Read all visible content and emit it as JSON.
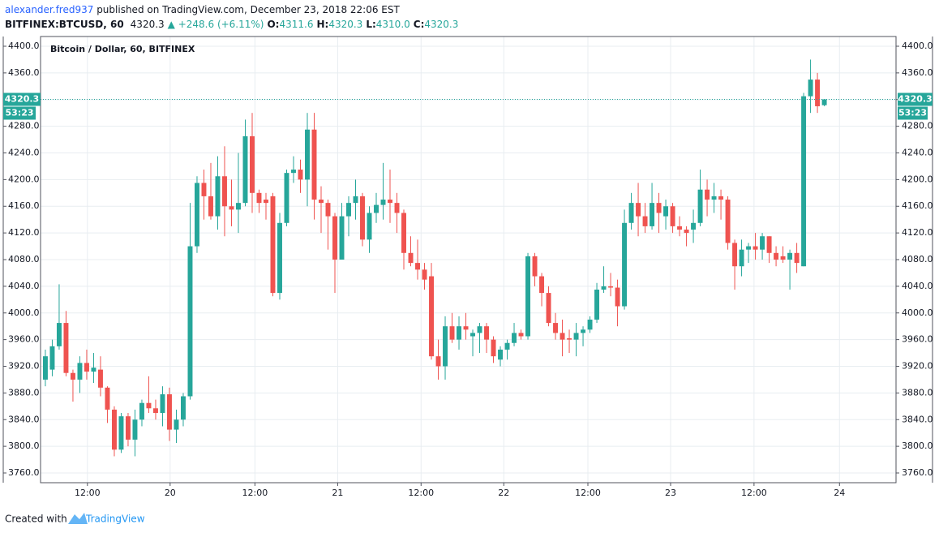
{
  "header": {
    "author": "alexander.fred937",
    "published": " published on TradingView.com, December 23, 2018 22:06 EST",
    "symbol": "BITFINEX:BTCUSD, 60",
    "last": "4320.3",
    "change": "▲ +248.6 (+6.11%)",
    "ohlc": [
      {
        "label": "O:",
        "value": "4311.6"
      },
      {
        "label": "H:",
        "value": "4320.3"
      },
      {
        "label": "L:",
        "value": "4310.0"
      },
      {
        "label": "C:",
        "value": "4320.3"
      }
    ]
  },
  "footer": {
    "created": "Created with",
    "brand": "TradingView"
  },
  "chart_data": {
    "type": "candlestick",
    "title": "Bitcoin / Dollar, 60, BITFINEX",
    "up_color": "#26a69a",
    "down_color": "#ef5350",
    "grid": true,
    "last_price": 4320.3,
    "countdown": "53:23",
    "ylim": [
      3745.4,
      4414.6
    ],
    "yticks": [
      {
        "value": 3760,
        "label": "3760.0"
      },
      {
        "value": 3800,
        "label": "3800.0"
      },
      {
        "value": 3840,
        "label": "3840.0"
      },
      {
        "value": 3880,
        "label": "3880.0"
      },
      {
        "value": 3920,
        "label": "3920.0"
      },
      {
        "value": 3960,
        "label": "3960.0"
      },
      {
        "value": 4000,
        "label": "4000.0"
      },
      {
        "value": 4040,
        "label": "4040.0"
      },
      {
        "value": 4080,
        "label": "4080.0"
      },
      {
        "value": 4120,
        "label": "4120.0"
      },
      {
        "value": 4160,
        "label": "4160.0"
      },
      {
        "value": 4200,
        "label": "4200.0"
      },
      {
        "value": 4240,
        "label": "4240.0"
      },
      {
        "value": 4280,
        "label": "4280.0"
      },
      {
        "value": 4320,
        "label": "4320.0"
      },
      {
        "value": 4360,
        "label": "4360.0"
      },
      {
        "value": 4400,
        "label": "4400.0"
      }
    ],
    "xlim": [
      -0.7,
      123.4
    ],
    "xticks": [
      {
        "value": 6.1,
        "label": "12:00"
      },
      {
        "value": 18.1,
        "label": "20"
      },
      {
        "value": 30.4,
        "label": "12:00"
      },
      {
        "value": 42.4,
        "label": "21"
      },
      {
        "value": 54.5,
        "label": "12:00"
      },
      {
        "value": 66.5,
        "label": "22"
      },
      {
        "value": 78.7,
        "label": "12:00"
      },
      {
        "value": 90.7,
        "label": "23"
      },
      {
        "value": 102.8,
        "label": "12:00"
      },
      {
        "value": 115.2,
        "label": "24"
      }
    ],
    "open": [
      3900,
      3915,
      3950,
      3985,
      3910,
      3900,
      3925,
      3912,
      3915,
      3888,
      3855,
      3795,
      3845,
      3810,
      3840,
      3865,
      3857,
      3850,
      3878,
      3825,
      3840,
      3875,
      4100,
      4195,
      4175,
      4145,
      4205,
      4160,
      4155,
      4165,
      4265,
      4180,
      4170,
      4175,
      4030,
      4135,
      4210,
      4215,
      4200,
      4275,
      4170,
      4165,
      4145,
      4080,
      4145,
      4165,
      4175,
      4110,
      4150,
      4162,
      4170,
      4165,
      4150,
      4090,
      4075,
      4065,
      4055,
      3935,
      3920,
      3980,
      3960,
      3980,
      3965,
      3970,
      3980,
      3960,
      3930,
      3945,
      3955,
      3970,
      3965,
      4085,
      4055,
      4030,
      3985,
      3970,
      3962,
      3960,
      3970,
      3975,
      3990,
      4035,
      4040,
      4038,
      4010,
      4135,
      4165,
      4145,
      4130,
      4165,
      4145,
      4160,
      4130,
      4125,
      4125,
      4135,
      4185,
      4170,
      4175,
      4170,
      4105,
      4070,
      4095,
      4100,
      4095,
      4115,
      4090,
      4085,
      4080,
      4090,
      4070,
      4325,
      4350,
      4311.6
    ],
    "high": [
      3945,
      3960,
      4043,
      4003,
      3915,
      3935,
      3945,
      3940,
      3935,
      3890,
      3860,
      3850,
      3850,
      3855,
      3870,
      3905,
      3870,
      3890,
      3888,
      3855,
      3880,
      4165,
      4205,
      4215,
      4225,
      4235,
      4250,
      4200,
      4240,
      4290,
      4300,
      4185,
      4180,
      4180,
      4150,
      4215,
      4235,
      4230,
      4300,
      4300,
      4190,
      4170,
      4150,
      4165,
      4175,
      4200,
      4180,
      4160,
      4180,
      4225,
      4215,
      4180,
      4155,
      4115,
      4110,
      4075,
      4075,
      3960,
      3995,
      4000,
      3995,
      4000,
      3975,
      3985,
      3985,
      3965,
      3950,
      3960,
      3985,
      3975,
      4090,
      4090,
      4060,
      4040,
      4000,
      3990,
      3975,
      3985,
      3980,
      3995,
      4045,
      4070,
      4060,
      4050,
      4155,
      4180,
      4195,
      4165,
      4195,
      4180,
      4170,
      4165,
      4145,
      4130,
      4155,
      4215,
      4200,
      4195,
      4185,
      4175,
      4110,
      4110,
      4105,
      4120,
      4120,
      4115,
      4100,
      4100,
      4095,
      4105,
      4330,
      4380,
      4360,
      4320.3
    ],
    "low": [
      3890,
      3905,
      3945,
      3905,
      3867,
      3880,
      3900,
      3895,
      3875,
      3835,
      3785,
      3790,
      3800,
      3785,
      3830,
      3850,
      3840,
      3830,
      3808,
      3805,
      3830,
      3870,
      4090,
      4140,
      4140,
      4125,
      4115,
      4130,
      4120,
      4160,
      4150,
      4150,
      4140,
      4025,
      4020,
      4130,
      4195,
      4180,
      4160,
      4140,
      4120,
      4095,
      4030,
      4080,
      4115,
      4140,
      4100,
      4090,
      4135,
      4140,
      4135,
      4120,
      4065,
      4070,
      4050,
      4035,
      3930,
      3900,
      3900,
      3955,
      3945,
      3960,
      3935,
      3940,
      3940,
      3925,
      3920,
      3930,
      3950,
      3960,
      3960,
      4040,
      4010,
      3980,
      3960,
      3935,
      3940,
      3935,
      3950,
      3970,
      3985,
      4030,
      4025,
      3980,
      4005,
      4125,
      4115,
      4120,
      4125,
      4120,
      4125,
      4120,
      4115,
      4100,
      4105,
      4130,
      4145,
      4150,
      4140,
      4095,
      4035,
      4055,
      4075,
      4080,
      4080,
      4075,
      4070,
      4075,
      4035,
      4060,
      4070,
      4300,
      4300,
      4310
    ],
    "close": [
      3935,
      3950,
      3985,
      3910,
      3900,
      3925,
      3912,
      3918,
      3888,
      3855,
      3795,
      3845,
      3810,
      3840,
      3865,
      3857,
      3850,
      3878,
      3825,
      3840,
      3875,
      4100,
      4195,
      4175,
      4145,
      4205,
      4160,
      4155,
      4165,
      4265,
      4180,
      4165,
      4165,
      4030,
      4135,
      4210,
      4215,
      4200,
      4275,
      4170,
      4165,
      4145,
      4080,
      4145,
      4165,
      4175,
      4110,
      4150,
      4162,
      4170,
      4165,
      4150,
      4090,
      4075,
      4065,
      4050,
      3935,
      3920,
      3980,
      3960,
      3980,
      3975,
      3970,
      3980,
      3960,
      3935,
      3945,
      3955,
      3970,
      3965,
      4085,
      4055,
      4030,
      3985,
      3970,
      3960,
      3960,
      3970,
      3975,
      3990,
      4035,
      4040,
      4038,
      4010,
      4135,
      4165,
      4145,
      4130,
      4165,
      4150,
      4160,
      4130,
      4125,
      4120,
      4135,
      4185,
      4170,
      4175,
      4170,
      4105,
      4070,
      4095,
      4100,
      4095,
      4115,
      4090,
      4080,
      4080,
      4090,
      4075,
      4325,
      4350,
      4310,
      4320.3
    ]
  }
}
